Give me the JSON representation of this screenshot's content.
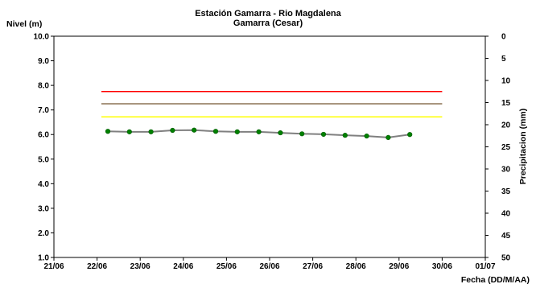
{
  "chart_data": {
    "type": "line",
    "title": "Estación Gamarra - Rio Magdalena",
    "subtitle": "Gamarra (Cesar)",
    "ylabel": "Nivel (m)",
    "y2label": "Precipitacion (mm)",
    "xlabel": "Fecha (DD/M/AA)",
    "ylim": [
      1.0,
      10.0
    ],
    "y2lim": [
      0,
      50
    ],
    "y2_inverted": true,
    "x_ticks": [
      "21/06",
      "22/06",
      "23/06",
      "24/06",
      "25/06",
      "26/06",
      "27/06",
      "28/06",
      "29/06",
      "30/06",
      "01/07"
    ],
    "y_ticks": [
      "10.0",
      "9.0",
      "8.0",
      "7.0",
      "6.0",
      "5.0",
      "4.0",
      "3.0",
      "2.0",
      "1.0"
    ],
    "y2_ticks": [
      "0",
      "5",
      "10",
      "15",
      "20",
      "25",
      "30",
      "35",
      "40",
      "45",
      "50"
    ],
    "grid": false,
    "series": [
      {
        "kind": "level",
        "color": "#808080",
        "marker_color": "#008000",
        "x": [
          1.25,
          1.75,
          2.25,
          2.75,
          3.25,
          3.75,
          4.25,
          4.75,
          5.25,
          5.75,
          6.25,
          6.75,
          7.25,
          7.75,
          8.25
        ],
        "values": [
          6.13,
          6.11,
          6.11,
          6.17,
          6.18,
          6.13,
          6.11,
          6.11,
          6.07,
          6.03,
          6.01,
          5.97,
          5.94,
          5.88,
          6.0
        ]
      }
    ],
    "reference_lines": [
      {
        "value": 7.75,
        "color": "#ff0000"
      },
      {
        "value": 7.25,
        "color": "#8b7355"
      },
      {
        "value": 6.72,
        "color": "#ffff00"
      }
    ],
    "reference_x_range": [
      1.1,
      9.0
    ]
  }
}
